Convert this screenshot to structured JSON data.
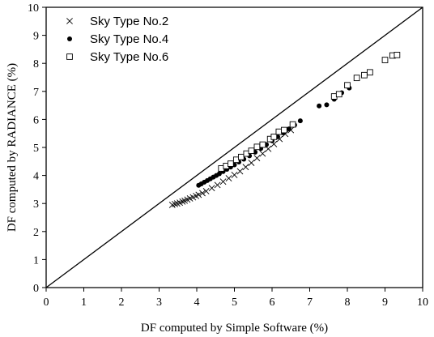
{
  "chart_data": {
    "type": "scatter",
    "xlabel": "DF computed by Simple Software (%)",
    "ylabel": "DF computed by RADIANCE (%)",
    "xlim": [
      0,
      10
    ],
    "ylim": [
      0,
      10
    ],
    "xticks": [
      0,
      1,
      2,
      3,
      4,
      5,
      6,
      7,
      8,
      9,
      10
    ],
    "yticks": [
      0,
      1,
      2,
      3,
      4,
      5,
      6,
      7,
      8,
      9,
      10
    ],
    "x_tick_labels": [
      "0",
      "1",
      "2",
      "3",
      "4",
      "5",
      "6",
      "7",
      "8",
      "9",
      "10"
    ],
    "y_tick_labels": [
      "0",
      "1",
      "2",
      "3",
      "4",
      "5",
      "6",
      "7",
      "8",
      "9",
      "10"
    ],
    "grid": false,
    "legend_position": "top-left",
    "reference_line": {
      "from": [
        0,
        0
      ],
      "to": [
        10,
        10
      ]
    },
    "series": [
      {
        "name": "Sky Type No.2",
        "marker": "x",
        "points": [
          [
            3.35,
            2.95
          ],
          [
            3.42,
            2.98
          ],
          [
            3.48,
            3.0
          ],
          [
            3.55,
            3.03
          ],
          [
            3.62,
            3.07
          ],
          [
            3.68,
            3.1
          ],
          [
            3.75,
            3.14
          ],
          [
            3.82,
            3.18
          ],
          [
            3.9,
            3.22
          ],
          [
            3.98,
            3.27
          ],
          [
            4.05,
            3.31
          ],
          [
            4.15,
            3.37
          ],
          [
            4.25,
            3.44
          ],
          [
            4.4,
            3.55
          ],
          [
            4.55,
            3.66
          ],
          [
            4.7,
            3.78
          ],
          [
            4.85,
            3.9
          ],
          [
            5.0,
            4.02
          ],
          [
            5.15,
            4.15
          ],
          [
            5.3,
            4.3
          ],
          [
            5.45,
            4.45
          ],
          [
            5.6,
            4.62
          ],
          [
            5.75,
            4.78
          ],
          [
            5.9,
            4.95
          ],
          [
            6.05,
            5.12
          ],
          [
            6.2,
            5.3
          ],
          [
            6.35,
            5.48
          ],
          [
            6.5,
            5.62
          ]
        ]
      },
      {
        "name": "Sky Type No.4",
        "marker": "dot",
        "points": [
          [
            4.05,
            3.65
          ],
          [
            4.12,
            3.7
          ],
          [
            4.2,
            3.76
          ],
          [
            4.28,
            3.82
          ],
          [
            4.36,
            3.88
          ],
          [
            4.44,
            3.94
          ],
          [
            4.52,
            4.0
          ],
          [
            4.6,
            4.06
          ],
          [
            4.7,
            4.14
          ],
          [
            4.8,
            4.22
          ],
          [
            4.9,
            4.3
          ],
          [
            5.0,
            4.38
          ],
          [
            5.12,
            4.48
          ],
          [
            5.25,
            4.58
          ],
          [
            5.4,
            4.7
          ],
          [
            5.55,
            4.83
          ],
          [
            5.7,
            4.96
          ],
          [
            5.85,
            5.1
          ],
          [
            6.0,
            5.24
          ],
          [
            6.15,
            5.38
          ],
          [
            6.3,
            5.52
          ],
          [
            6.45,
            5.66
          ],
          [
            6.6,
            5.8
          ],
          [
            6.75,
            5.95
          ],
          [
            7.25,
            6.48
          ],
          [
            7.45,
            6.52
          ],
          [
            7.65,
            6.72
          ],
          [
            7.85,
            6.95
          ],
          [
            8.05,
            7.12
          ]
        ]
      },
      {
        "name": "Sky Type No.6",
        "marker": "square",
        "points": [
          [
            4.65,
            4.25
          ],
          [
            4.78,
            4.34
          ],
          [
            4.9,
            4.42
          ],
          [
            5.05,
            4.56
          ],
          [
            5.18,
            4.66
          ],
          [
            5.32,
            4.78
          ],
          [
            5.45,
            4.88
          ],
          [
            5.6,
            5.02
          ],
          [
            5.75,
            5.1
          ],
          [
            5.95,
            5.3
          ],
          [
            6.05,
            5.38
          ],
          [
            6.18,
            5.56
          ],
          [
            6.32,
            5.62
          ],
          [
            6.55,
            5.82
          ],
          [
            7.65,
            6.82
          ],
          [
            7.78,
            6.9
          ],
          [
            8.0,
            7.22
          ],
          [
            8.25,
            7.48
          ],
          [
            8.45,
            7.58
          ],
          [
            8.6,
            7.68
          ],
          [
            9.0,
            8.12
          ],
          [
            9.2,
            8.28
          ],
          [
            9.32,
            8.3
          ]
        ]
      }
    ]
  }
}
